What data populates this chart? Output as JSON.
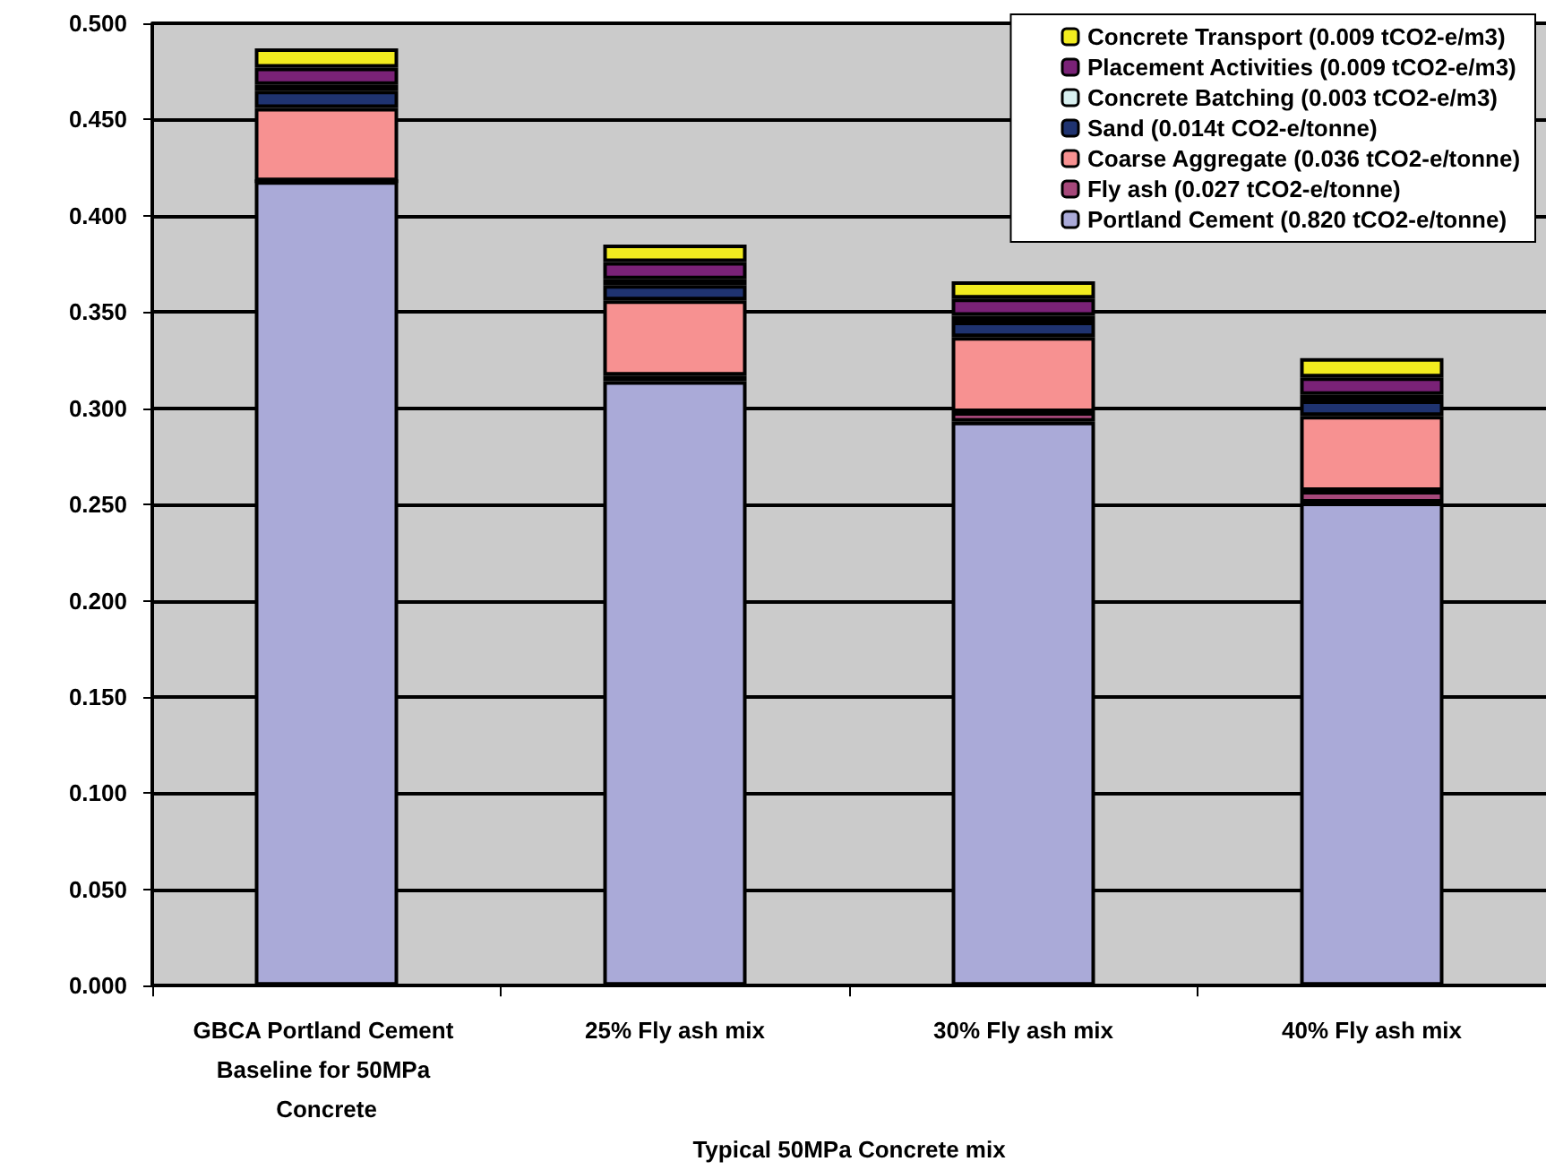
{
  "chart_data": {
    "type": "bar",
    "stacked": true,
    "xlabel": "Typical 50MPa Concrete mix",
    "categories": [
      "GBCA Portland Cement Baseline for 50MPa Concrete",
      "25% Fly ash mix",
      "30% Fly ash mix",
      "40% Fly ash mix"
    ],
    "series": [
      {
        "name": "Portland Cement (0.820 tCO2-e/tonne)",
        "color": "#aaaad8",
        "values": [
          0.418,
          0.314,
          0.293,
          0.251
        ]
      },
      {
        "name": "Fly ash (0.027 tCO2-e/tonne)",
        "color": "#a6487a",
        "values": [
          0,
          0.003,
          0.005,
          0.006
        ]
      },
      {
        "name": "Coarse Aggregate (0.036 tCO2-e/tonne)",
        "color": "#f79191",
        "values": [
          0.038,
          0.039,
          0.039,
          0.039
        ]
      },
      {
        "name": "Sand (0.014t CO2-e/tonne)",
        "color": "#1f3370",
        "values": [
          0.009,
          0.008,
          0.008,
          0.008
        ]
      },
      {
        "name": "Concrete Batching (0.003 tCO2-e/m3)",
        "color": "#d8f0f0",
        "values": [
          0.003,
          0.003,
          0.003,
          0.003
        ]
      },
      {
        "name": "Placement Activities (0.009 tCO2-e/m3)",
        "color": "#7a2277",
        "values": [
          0.009,
          0.009,
          0.009,
          0.009
        ]
      },
      {
        "name": "Concrete Transport (0.009 tCO2-e/m3)",
        "color": "#f2ec1f",
        "values": [
          0.01,
          0.009,
          0.009,
          0.01
        ]
      }
    ],
    "ylim": [
      0,
      0.5
    ],
    "yticks": [
      {
        "value": 0,
        "label": "0.000"
      },
      {
        "value": 0.05,
        "label": "0.050"
      },
      {
        "value": 0.1,
        "label": "0.100"
      },
      {
        "value": 0.15,
        "label": "0.150"
      },
      {
        "value": 0.2,
        "label": "0.200"
      },
      {
        "value": 0.25,
        "label": "0.250"
      },
      {
        "value": 0.3,
        "label": "0.300"
      },
      {
        "value": 0.35,
        "label": "0.350"
      },
      {
        "value": 0.4,
        "label": "0.400"
      },
      {
        "value": 0.45,
        "label": "0.450"
      },
      {
        "value": 0.5,
        "label": "0.500"
      }
    ],
    "grid": "y",
    "legend": "top right"
  }
}
